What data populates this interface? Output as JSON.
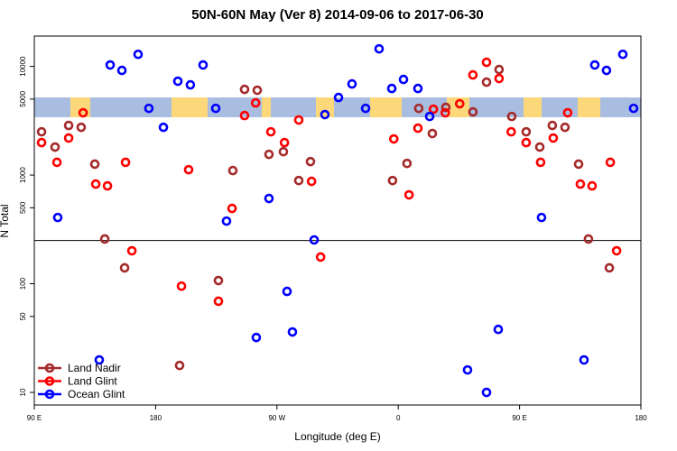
{
  "chart_data": {
    "type": "scatter",
    "title": "50N-60N May (Ver 8)   2014-09-06 to 2017-06-30",
    "x_label": "Longitude (deg E)",
    "y_label": "N Total",
    "log_y": true,
    "xlim": [
      90,
      540
    ],
    "ylim": [
      7.66,
      19000
    ],
    "xticks": [
      {
        "value": 90,
        "label": "90 E"
      },
      {
        "value": 180,
        "label": "180"
      },
      {
        "value": 270,
        "label": "90 W"
      },
      {
        "value": 360,
        "label": "0"
      },
      {
        "value": 450,
        "label": "90 E"
      },
      {
        "value": 540,
        "label": "180"
      }
    ],
    "yticks": [
      10,
      50,
      100,
      500,
      1000,
      5000,
      10000
    ],
    "hline": 250,
    "legend": "lower left",
    "series": [
      {
        "name": "Land Nadir",
        "color": "#a52a2a",
        "x": [
          95.4,
          105.4,
          115.5,
          124.8,
          134.9,
          142.3,
          157,
          197.8,
          226.6,
          237.3,
          246,
          255.4,
          264.1,
          274.8,
          286.2,
          294.9,
          355.8,
          366.5,
          375.2,
          385.3,
          395.3,
          415.4,
          425.5,
          434.8,
          444.2,
          454.9,
          465,
          474.3,
          483.7,
          493.8,
          501.1,
          516.6
        ],
        "values": [
          2500,
          1810,
          2860,
          2750,
          1260,
          258,
          140,
          17.7,
          107,
          1100,
          6140,
          6030,
          1550,
          1640,
          890,
          1330,
          890,
          1280,
          4110,
          2410,
          4190,
          3810,
          7160,
          9350,
          3460,
          2500,
          1810,
          2860,
          2750,
          1260,
          258,
          140
        ]
      },
      {
        "name": "Land Glint",
        "color": "#ff0000",
        "x": [
          95.4,
          106.8,
          115.5,
          126.2,
          135.6,
          144.3,
          157.7,
          162.4,
          199.2,
          204.5,
          226.6,
          236.7,
          246,
          254.2,
          265.5,
          275.6,
          286.2,
          295.7,
          302.4,
          356.7,
          368,
          374.6,
          386.1,
          394.9,
          405.6,
          415.4,
          425.5,
          434.8,
          443.8,
          454.9,
          465.6,
          475,
          485.7,
          495.1,
          503.8,
          517.3,
          522
        ],
        "values": [
          1990,
          1310,
          2190,
          3740,
          826,
          795,
          1310,
          201,
          95,
          1120,
          69,
          493,
          3530,
          4610,
          2500,
          1990,
          3210,
          875,
          176,
          2150,
          657,
          2700,
          4040,
          3740,
          4530,
          8340,
          10900,
          7730,
          2500,
          1990,
          1310,
          2190,
          3740,
          826,
          795,
          1310,
          201
        ]
      },
      {
        "name": "Ocean Glint",
        "color": "#0000ff",
        "x": [
          107.4,
          138.2,
          146.3,
          155,
          167,
          175,
          185.8,
          196.5,
          205.8,
          215.2,
          224.6,
          232.6,
          254.7,
          264.1,
          277.5,
          281.5,
          297.6,
          305.6,
          315.7,
          325.7,
          335.8,
          345.8,
          355.2,
          363.9,
          374.6,
          383.3,
          411.4,
          425.5,
          434.2,
          466.3,
          497.8,
          505.8,
          514.5,
          526.6,
          534.6
        ],
        "values": [
          407,
          19.9,
          10300,
          9180,
          12900,
          4110,
          2750,
          7300,
          6760,
          10300,
          4110,
          377,
          32,
          609,
          85,
          36,
          253,
          3600,
          5170,
          6890,
          4110,
          14500,
          6260,
          7580,
          6260,
          3460,
          16.1,
          10,
          38,
          407,
          19.9,
          10300,
          9180,
          12900,
          4110
        ]
      }
    ]
  }
}
